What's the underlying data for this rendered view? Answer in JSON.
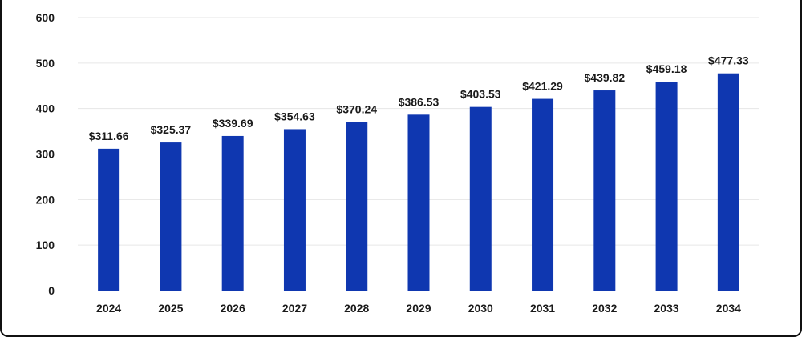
{
  "chart_data": {
    "type": "bar",
    "title": "",
    "xlabel": "",
    "ylabel": "",
    "categories": [
      "2024",
      "2025",
      "2026",
      "2027",
      "2028",
      "2029",
      "2030",
      "2031",
      "2032",
      "2033",
      "2034"
    ],
    "values": [
      311.66,
      325.37,
      339.69,
      354.63,
      370.24,
      386.53,
      403.53,
      421.29,
      439.82,
      459.18,
      477.33
    ],
    "data_labels": [
      "$311.66",
      "$325.37",
      "$339.69",
      "$354.63",
      "$370.24",
      "$386.53",
      "$403.53",
      "$421.29",
      "$439.82",
      "$459.18",
      "$477.33"
    ],
    "ylim": [
      0,
      600
    ],
    "yticks": [
      "0",
      "100",
      "200",
      "300",
      "400",
      "500",
      "600"
    ],
    "grid": true,
    "legend": "none",
    "bar_color": "#0f37b0",
    "grid_color": "#e6e6e6",
    "axis_color": "#9a9a9a",
    "text_color": "#1a1a1a"
  }
}
